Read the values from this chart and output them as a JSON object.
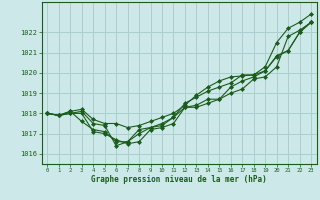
{
  "xlabel": "Graphe pression niveau de la mer (hPa)",
  "background_color": "#cce8e8",
  "grid_color": "#aacfcf",
  "line_color": "#1a5c1a",
  "marker_color": "#1a5c1a",
  "ylim": [
    1015.5,
    1023.5
  ],
  "xlim": [
    -0.5,
    23.5
  ],
  "yticks": [
    1016,
    1017,
    1018,
    1019,
    1020,
    1021,
    1022
  ],
  "xticks": [
    0,
    1,
    2,
    3,
    4,
    5,
    6,
    7,
    8,
    9,
    10,
    11,
    12,
    13,
    14,
    15,
    16,
    17,
    18,
    19,
    20,
    21,
    22,
    23
  ],
  "series": [
    [
      1018.0,
      1017.9,
      1018.0,
      1018.0,
      1017.1,
      1017.0,
      1016.7,
      1016.5,
      1016.6,
      1017.2,
      1017.3,
      1017.5,
      1018.3,
      1018.3,
      1018.5,
      1018.7,
      1019.0,
      1019.2,
      1019.7,
      1019.8,
      1020.3,
      1021.8,
      1022.1,
      1022.5
    ],
    [
      1018.0,
      1017.9,
      1018.0,
      1018.1,
      1017.5,
      1017.4,
      1016.4,
      1016.6,
      1017.2,
      1017.3,
      1017.4,
      1017.8,
      1018.5,
      1018.8,
      1019.1,
      1019.3,
      1019.5,
      1019.9,
      1019.9,
      1020.3,
      1021.5,
      1022.2,
      1022.5,
      1022.9
    ],
    [
      1018.0,
      1017.9,
      1018.1,
      1018.2,
      1017.7,
      1017.5,
      1017.5,
      1017.3,
      1017.4,
      1017.6,
      1017.8,
      1018.0,
      1018.4,
      1018.9,
      1019.3,
      1019.6,
      1019.8,
      1019.85,
      1019.9,
      1020.1,
      1020.85,
      1021.1,
      1022.0,
      1022.5
    ],
    [
      1018.0,
      1017.9,
      1018.1,
      1017.6,
      1017.2,
      1017.1,
      1016.6,
      1016.6,
      1017.0,
      1017.3,
      1017.5,
      1017.8,
      1018.3,
      1018.4,
      1018.7,
      1018.7,
      1019.3,
      1019.6,
      1019.8,
      1020.1,
      1020.8,
      1021.1,
      1022.0,
      1022.5
    ]
  ]
}
